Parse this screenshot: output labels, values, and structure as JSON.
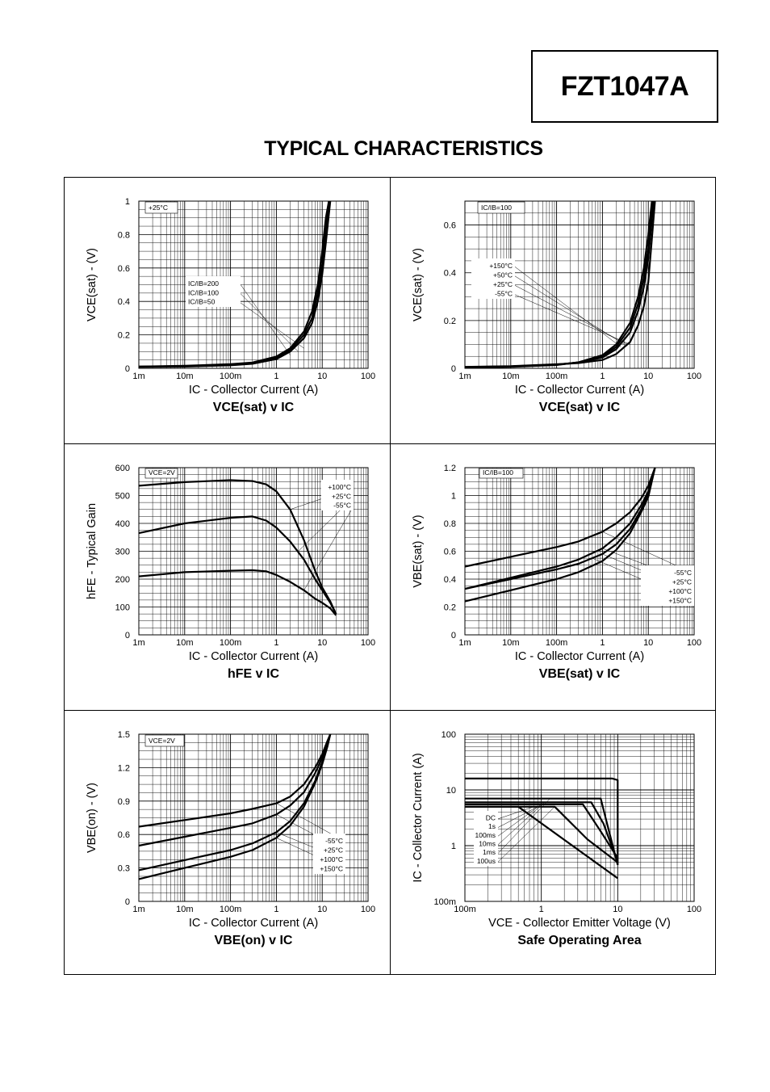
{
  "header": {
    "part_number": "FZT1047A",
    "page_title": "TYPICAL CHARACTERISTICS"
  },
  "chart_data": [
    {
      "id": "c1",
      "type": "line",
      "log_x": true,
      "log_y": false,
      "title": "VCE(sat) v IC",
      "xlabel": "IC - Collector Current (A)",
      "ylabel": "VCE(sat) - (V)",
      "xlim": [
        0.001,
        100
      ],
      "ylim": [
        0,
        1
      ],
      "x_ticks": [
        0.001,
        0.01,
        0.1,
        1,
        10,
        100
      ],
      "x_tick_labels": [
        "1m",
        "10m",
        "100m",
        "1",
        "10",
        "100"
      ],
      "y_ticks": [
        0,
        0.2,
        0.4,
        0.6,
        0.8,
        1
      ],
      "y_tick_labels": [
        "0",
        "0.2",
        "0.4",
        "0.6",
        "0.8",
        "1"
      ],
      "annotations": [
        "+25°C"
      ],
      "legend": [
        "IC/IB=200",
        "IC/IB=100",
        "IC/IB=50"
      ],
      "series": [
        {
          "name": "IC/IB=200",
          "x": [
            0.001,
            0.01,
            0.1,
            0.3,
            1,
            2,
            4,
            6,
            8,
            10,
            12,
            14
          ],
          "y": [
            0.01,
            0.015,
            0.025,
            0.035,
            0.07,
            0.12,
            0.22,
            0.34,
            0.5,
            0.7,
            0.9,
            1.0
          ]
        },
        {
          "name": "IC/IB=100",
          "x": [
            0.001,
            0.01,
            0.1,
            0.3,
            1,
            2,
            4,
            6,
            8,
            10,
            12,
            14
          ],
          "y": [
            0.01,
            0.013,
            0.02,
            0.03,
            0.06,
            0.11,
            0.2,
            0.3,
            0.45,
            0.62,
            0.82,
            1.0
          ]
        },
        {
          "name": "IC/IB=50",
          "x": [
            0.001,
            0.01,
            0.1,
            0.3,
            1,
            2,
            4,
            6,
            8,
            10,
            12,
            15
          ],
          "y": [
            0.008,
            0.01,
            0.018,
            0.027,
            0.055,
            0.1,
            0.18,
            0.27,
            0.4,
            0.56,
            0.75,
            1.0
          ]
        }
      ]
    },
    {
      "id": "c2",
      "type": "line",
      "log_x": true,
      "log_y": false,
      "title": "VCE(sat) v IC",
      "xlabel": "IC - Collector Current (A)",
      "ylabel": "VCE(sat) - (V)",
      "xlim": [
        0.001,
        100
      ],
      "ylim": [
        0,
        0.7
      ],
      "x_ticks": [
        0.001,
        0.01,
        0.1,
        1,
        10,
        100
      ],
      "x_tick_labels": [
        "1m",
        "10m",
        "100m",
        "1",
        "10",
        "100"
      ],
      "y_ticks": [
        0,
        0.2,
        0.4,
        0.6
      ],
      "y_tick_labels": [
        "0",
        "0.2",
        "0.4",
        "0.6"
      ],
      "annotations": [
        "IC/IB=100"
      ],
      "legend": [
        "+150°C",
        "+50°C",
        "+25°C",
        "-55°C"
      ],
      "series": [
        {
          "name": "+150°C",
          "x": [
            0.001,
            0.01,
            0.1,
            0.3,
            1,
            2,
            4,
            6,
            8,
            10,
            12
          ],
          "y": [
            0.003,
            0.006,
            0.014,
            0.025,
            0.055,
            0.1,
            0.19,
            0.3,
            0.42,
            0.56,
            0.7
          ]
        },
        {
          "name": "+50°C",
          "x": [
            0.001,
            0.01,
            0.1,
            0.3,
            1,
            2,
            4,
            6,
            8,
            10,
            12.5
          ],
          "y": [
            0.004,
            0.007,
            0.015,
            0.025,
            0.05,
            0.09,
            0.17,
            0.27,
            0.38,
            0.5,
            0.7
          ]
        },
        {
          "name": "+25°C",
          "x": [
            0.001,
            0.01,
            0.1,
            0.3,
            1,
            2,
            4,
            6,
            8,
            10,
            13
          ],
          "y": [
            0.005,
            0.008,
            0.016,
            0.024,
            0.045,
            0.08,
            0.15,
            0.24,
            0.34,
            0.46,
            0.7
          ]
        },
        {
          "name": "-55°C",
          "x": [
            0.001,
            0.01,
            0.1,
            0.3,
            1,
            2,
            4,
            6,
            8,
            10,
            14
          ],
          "y": [
            0.006,
            0.009,
            0.017,
            0.022,
            0.035,
            0.06,
            0.11,
            0.18,
            0.26,
            0.36,
            0.7
          ]
        }
      ]
    },
    {
      "id": "c3",
      "type": "line",
      "log_x": true,
      "log_y": false,
      "title": "hFE v IC",
      "xlabel": "IC - Collector Current (A)",
      "ylabel": "hFE - Typical Gain",
      "xlim": [
        0.001,
        100
      ],
      "ylim": [
        0,
        600
      ],
      "x_ticks": [
        0.001,
        0.01,
        0.1,
        1,
        10,
        100
      ],
      "x_tick_labels": [
        "1m",
        "10m",
        "100m",
        "1",
        "10",
        "100"
      ],
      "y_ticks": [
        0,
        100,
        200,
        300,
        400,
        500,
        600
      ],
      "y_tick_labels": [
        "0",
        "100",
        "200",
        "300",
        "400",
        "500",
        "600"
      ],
      "annotations": [
        "VCE=2V"
      ],
      "legend": [
        "+100°C",
        "+25°C",
        "-55°C"
      ],
      "series": [
        {
          "name": "+100°C",
          "x": [
            0.001,
            0.01,
            0.1,
            0.3,
            0.6,
            1,
            2,
            4,
            7,
            10,
            15,
            20
          ],
          "y": [
            535,
            548,
            555,
            552,
            540,
            515,
            450,
            340,
            230,
            170,
            120,
            75
          ]
        },
        {
          "name": "+25°C",
          "x": [
            0.001,
            0.01,
            0.1,
            0.3,
            0.6,
            1,
            2,
            4,
            7,
            10,
            15,
            20
          ],
          "y": [
            365,
            400,
            420,
            425,
            410,
            385,
            335,
            270,
            200,
            160,
            115,
            75
          ]
        },
        {
          "name": "-55°C",
          "x": [
            0.001,
            0.01,
            0.1,
            0.3,
            0.6,
            1,
            2,
            4,
            7,
            10,
            15,
            20
          ],
          "y": [
            210,
            225,
            230,
            232,
            228,
            215,
            190,
            160,
            130,
            115,
            95,
            70
          ]
        }
      ]
    },
    {
      "id": "c4",
      "type": "line",
      "log_x": true,
      "log_y": false,
      "title": "VBE(sat) v IC",
      "xlabel": "IC - Collector Current (A)",
      "ylabel": "VBE(sat) - (V)",
      "xlim": [
        0.001,
        100
      ],
      "ylim": [
        0,
        1.2
      ],
      "x_ticks": [
        0.001,
        0.01,
        0.1,
        1,
        10,
        100
      ],
      "x_tick_labels": [
        "1m",
        "10m",
        "100m",
        "1",
        "10",
        "100"
      ],
      "y_ticks": [
        0,
        0.2,
        0.4,
        0.6,
        0.8,
        1,
        1.2
      ],
      "y_tick_labels": [
        "0",
        "0.2",
        "0.4",
        "0.6",
        "0.8",
        "1",
        "1.2"
      ],
      "annotations": [
        "IC/IB=100"
      ],
      "legend": [
        "-55°C",
        "+25°C",
        "+100°C",
        "+150°C"
      ],
      "series": [
        {
          "name": "-55°C",
          "x": [
            0.001,
            0.01,
            0.1,
            0.3,
            1,
            2,
            4,
            7,
            10,
            14
          ],
          "y": [
            0.49,
            0.56,
            0.63,
            0.67,
            0.74,
            0.8,
            0.88,
            0.98,
            1.07,
            1.2
          ]
        },
        {
          "name": "+25°C",
          "x": [
            0.001,
            0.01,
            0.1,
            0.3,
            1,
            2,
            4,
            7,
            10,
            14
          ],
          "y": [
            0.33,
            0.41,
            0.49,
            0.54,
            0.62,
            0.7,
            0.8,
            0.93,
            1.03,
            1.2
          ]
        },
        {
          "name": "+100°C",
          "x": [
            0.001,
            0.01,
            0.1,
            0.3,
            1,
            2,
            4,
            7,
            10,
            14
          ],
          "y": [
            0.33,
            0.4,
            0.47,
            0.51,
            0.58,
            0.65,
            0.76,
            0.9,
            1.01,
            1.2
          ]
        },
        {
          "name": "+150°C",
          "x": [
            0.001,
            0.01,
            0.1,
            0.3,
            1,
            2,
            4,
            7,
            10,
            14
          ],
          "y": [
            0.24,
            0.32,
            0.4,
            0.45,
            0.53,
            0.61,
            0.73,
            0.88,
            0.99,
            1.2
          ]
        }
      ]
    },
    {
      "id": "c5",
      "type": "line",
      "log_x": true,
      "log_y": false,
      "title": "VBE(on) v IC",
      "xlabel": "IC - Collector Current (A)",
      "ylabel": "VBE(on) - (V)",
      "xlim": [
        0.001,
        100
      ],
      "ylim": [
        0,
        1.5
      ],
      "x_ticks": [
        0.001,
        0.01,
        0.1,
        1,
        10,
        100
      ],
      "x_tick_labels": [
        "1m",
        "10m",
        "100m",
        "1",
        "10",
        "100"
      ],
      "y_ticks": [
        0,
        0.3,
        0.6,
        0.9,
        1.2,
        1.5
      ],
      "y_tick_labels": [
        "0",
        "0.3",
        "0.6",
        "0.9",
        "1.2",
        "1.5"
      ],
      "annotations": [
        "VCE=2V"
      ],
      "legend": [
        "-55°C",
        "+25°C",
        "+100°C",
        "+150°C"
      ],
      "series": [
        {
          "name": "-55°C",
          "x": [
            0.001,
            0.01,
            0.1,
            0.3,
            1,
            2,
            4,
            7,
            10,
            13,
            15
          ],
          "y": [
            0.67,
            0.73,
            0.79,
            0.83,
            0.88,
            0.94,
            1.05,
            1.2,
            1.32,
            1.44,
            1.5
          ]
        },
        {
          "name": "+25°C",
          "x": [
            0.001,
            0.01,
            0.1,
            0.3,
            1,
            2,
            4,
            7,
            10,
            13,
            15
          ],
          "y": [
            0.5,
            0.58,
            0.66,
            0.7,
            0.78,
            0.86,
            0.98,
            1.15,
            1.29,
            1.42,
            1.5
          ]
        },
        {
          "name": "+100°C",
          "x": [
            0.001,
            0.01,
            0.1,
            0.3,
            1,
            2,
            4,
            7,
            10,
            13,
            15
          ],
          "y": [
            0.28,
            0.37,
            0.46,
            0.52,
            0.62,
            0.72,
            0.88,
            1.08,
            1.25,
            1.4,
            1.5
          ]
        },
        {
          "name": "+150°C",
          "x": [
            0.001,
            0.01,
            0.1,
            0.3,
            1,
            2,
            4,
            7,
            10,
            13,
            15
          ],
          "y": [
            0.2,
            0.3,
            0.4,
            0.46,
            0.57,
            0.68,
            0.85,
            1.06,
            1.23,
            1.39,
            1.5
          ]
        }
      ]
    },
    {
      "id": "c6",
      "type": "line",
      "log_x": true,
      "log_y": true,
      "title": "Safe Operating Area",
      "xlabel": "VCE - Collector Emitter Voltage (V)",
      "ylabel": "IC - Collector Current (A)",
      "xlim": [
        0.1,
        100
      ],
      "ylim": [
        0.1,
        100
      ],
      "x_ticks": [
        0.1,
        1,
        10,
        100
      ],
      "x_tick_labels": [
        "100m",
        "1",
        "10",
        "100"
      ],
      "y_ticks": [
        0.1,
        1,
        10,
        100
      ],
      "y_tick_labels": [
        "100m",
        "1",
        "10",
        "100"
      ],
      "legend": [
        "DC",
        "1s",
        "100ms",
        "10ms",
        "1ms",
        "100us"
      ],
      "series": [
        {
          "name": "100us",
          "x": [
            0.1,
            8.5,
            10,
            10
          ],
          "y": [
            16,
            16,
            15,
            0.45
          ]
        },
        {
          "name": "1ms",
          "x": [
            0.1,
            6,
            7,
            10
          ],
          "y": [
            7,
            7,
            3,
            0.45
          ]
        },
        {
          "name": "10ms",
          "x": [
            0.1,
            4.5,
            6.5,
            10
          ],
          "y": [
            6,
            6,
            2.5,
            0.5
          ]
        },
        {
          "name": "100ms",
          "x": [
            0.1,
            3.5,
            6,
            10
          ],
          "y": [
            5.5,
            5.5,
            1.8,
            0.6
          ]
        },
        {
          "name": "1s",
          "x": [
            0.1,
            1.5,
            4,
            10
          ],
          "y": [
            5,
            5,
            1.3,
            0.5
          ]
        },
        {
          "name": "DC",
          "x": [
            0.1,
            0.5,
            10
          ],
          "y": [
            5,
            5,
            0.26
          ]
        }
      ]
    }
  ]
}
